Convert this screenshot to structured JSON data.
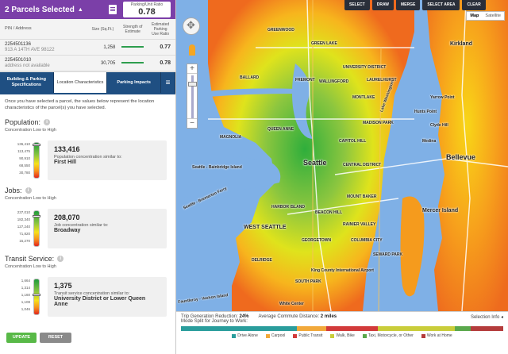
{
  "header": {
    "title": "2 Parcels Selected",
    "ratio_label": "Parking/Unit Ratio",
    "ratio_value": "0.78"
  },
  "parcels": {
    "columns": {
      "pin": "PIN / Address",
      "size": "Size (Sq.Ft.)",
      "strength": "Strength of Estimate",
      "ratio": "Estimated Parking Use Ratio"
    },
    "rows": [
      {
        "pin": "2254501136",
        "address": "913 A 14TH AVE 98122",
        "size": "1,258",
        "ratio": "0.77"
      },
      {
        "pin": "2254501010",
        "address": "address not available",
        "size": "30,705",
        "ratio": "0.78"
      }
    ]
  },
  "tabs": [
    {
      "label": "Building & Parking Specifications"
    },
    {
      "label": "Location Characteristics"
    },
    {
      "label": "Parking Impacts"
    }
  ],
  "intro": "Once you have selected a parcel, the values below represent the location characteristics of the parcel(s) you have selected.",
  "sections": {
    "population": {
      "title": "Population:",
      "range": "Concentration Low to High",
      "ticks": [
        "136,410",
        "113,475",
        "90,910",
        "68,550",
        "30,780"
      ],
      "value": "133,416",
      "similar": "Population concentration similar to:",
      "location": "First Hill",
      "level": 0.97
    },
    "jobs": {
      "title": "Jobs:",
      "range": "Concentration Low to High",
      "ticks": [
        "237,010",
        "182,340",
        "127,240",
        "71,820",
        "15,270"
      ],
      "value": "208,070",
      "similar": "Job concentration similar to:",
      "location": "Broadway",
      "level": 0.88
    },
    "transit": {
      "title": "Transit Service:",
      "range": "Concentration Low to High",
      "ticks": [
        "1,664",
        "1,314",
        "1,160",
        "1,108",
        "1,046"
      ],
      "value": "1,375",
      "similar": "Transit service concentration similar to:",
      "location": "University District or Lower Queen Anne",
      "level": 0.58
    }
  },
  "buttons": {
    "update": "UPDATE",
    "reset": "RESET"
  },
  "toolbar": {
    "select": "SELECT",
    "draw": "DRAW",
    "merge": "MERGE",
    "select_area": "SELECT AREA",
    "clear": "CLEAR"
  },
  "maptype": {
    "map": "Map",
    "satellite": "Satellite"
  },
  "map_labels": {
    "seattle": "Seattle",
    "bellevue": "Bellevue",
    "kirkland": "Kirkland",
    "mercer_island": "Mercer Island",
    "west_seattle": "WEST SEATTLE",
    "white_center": "White Center",
    "lake_washington": "Lake Washington",
    "capitol_hill": "CAPITOL HILL",
    "central_district": "CENTRAL DISTRICT",
    "fremont": "FREMONT",
    "wallingford": "WALLINGFORD",
    "queen_anne": "QUEEN ANNE",
    "magnolia": "MAGNOLIA",
    "ballard": "BALLARD",
    "university_district": "UNIVERSITY DISTRICT",
    "green_lake": "GREEN LAKE",
    "greenwood": "GREENWOOD",
    "beacon_hill": "BEACON HILL",
    "rainier_valley": "RAINIER VALLEY",
    "columbia_city": "COLUMBIA CITY",
    "georgetown": "GEORGETOWN",
    "delridge": "DELRIDGE",
    "harbor_island": "HARBOR ISLAND",
    "madison_park": "MADISON PARK",
    "montlake": "MONTLAKE",
    "laurelhurst": "LAURELHURST",
    "seward_park": "SEWARD PARK",
    "mount_baker": "MOUNT BAKER",
    "south_park": "SOUTH PARK",
    "clyde_hill": "Clyde Hill",
    "medina": "Medina",
    "yarrow_point": "Yarrow Point",
    "hunts_point": "Hunts Point",
    "king_county_airport": "King County International Airport",
    "ferry_bainbridge": "Seattle - Bainbridge Island",
    "ferry_bremerton": "Seattle - Bremerton Ferry",
    "ferry_vashon": "Fauntleroy - Vashon Island"
  },
  "stats": {
    "reduction_label": "Trip Generation Reduction:",
    "reduction_value": "24%",
    "commute_label": "Average Commute Distance:",
    "commute_value": "2 miles",
    "split_label": "Mode Split for Journey to Work:",
    "selection_info": "Selection Info"
  },
  "mode_split": [
    {
      "name": "Drive Alone",
      "color": "#2a9d9c",
      "share": 0.36
    },
    {
      "name": "Carpool",
      "color": "#f2a93b",
      "share": 0.09
    },
    {
      "name": "Public Transit",
      "color": "#d23a3a",
      "share": 0.16
    },
    {
      "name": "Walk, Bike",
      "color": "#c9cd3a",
      "share": 0.24
    },
    {
      "name": "Taxi, Motorcycle, or Other",
      "color": "#5aa84c",
      "share": 0.05
    },
    {
      "name": "Work at Home",
      "color": "#b43c3c",
      "share": 0.1
    }
  ]
}
